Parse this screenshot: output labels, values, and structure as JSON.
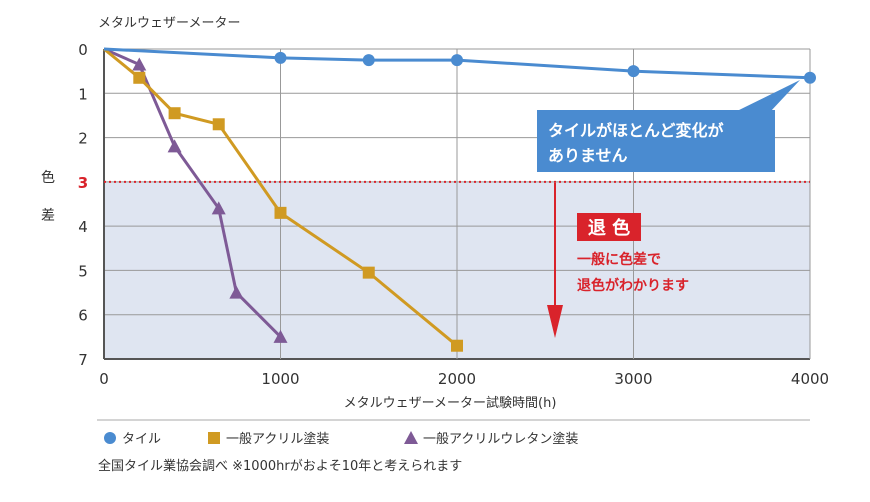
{
  "chart_data": {
    "type": "line",
    "title": "メタルウェザーメーター",
    "xlabel": "メタルウェザーメーター試験時間(h)",
    "ylabel": "色差",
    "xlim": [
      0,
      4000
    ],
    "ylim": [
      0,
      7
    ],
    "y_inverted": true,
    "grid": true,
    "x_ticks": [
      0,
      1000,
      2000,
      3000,
      4000
    ],
    "y_ticks": [
      0,
      1,
      2,
      3,
      4,
      5,
      6,
      7
    ],
    "threshold": {
      "value": 3,
      "label": "3",
      "color": "#d9232b"
    },
    "series": [
      {
        "name": "タイル",
        "marker": "circle",
        "color": "#4a8bd0",
        "x": [
          0,
          1000,
          1500,
          2000,
          3000,
          4000
        ],
        "y": [
          0,
          0.2,
          0.25,
          0.25,
          0.5,
          0.65
        ]
      },
      {
        "name": "一般アクリル塗装",
        "marker": "square",
        "color": "#d09a22",
        "x": [
          0,
          200,
          400,
          650,
          1000,
          1500,
          2000
        ],
        "y": [
          0,
          0.65,
          1.45,
          1.7,
          3.7,
          5.05,
          6.7
        ]
      },
      {
        "name": "一般アクリルウレタン塗装",
        "marker": "triangle",
        "color": "#7e5a96",
        "x": [
          0,
          200,
          400,
          650,
          750,
          1000
        ],
        "y": [
          0,
          0.35,
          2.2,
          3.6,
          5.5,
          6.5
        ]
      }
    ],
    "annotations": {
      "tile_note": [
        "タイルがほとんど変化が",
        "ありません"
      ],
      "fade_title": "退 色",
      "fade_note": [
        "一般に色差で",
        "退色がわかります"
      ]
    },
    "source": "全国タイル業協会調べ ※1000hrがおよそ10年と考えられます"
  }
}
